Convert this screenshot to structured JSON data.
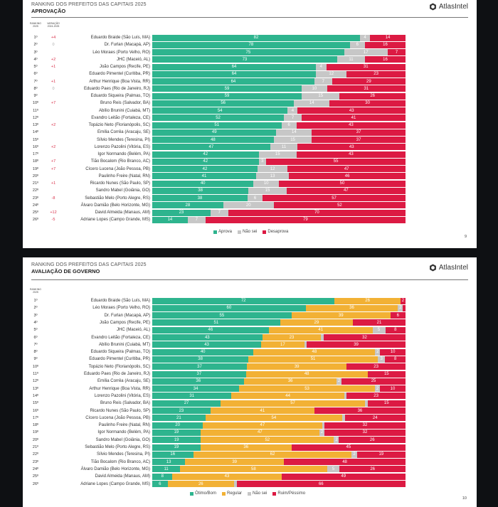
{
  "colors": {
    "green": "#2eb48e",
    "gray": "#c7c7c7",
    "red": "#dc1a43",
    "yellow": "#f2b135"
  },
  "slides": [
    {
      "suptitle": "RANKING DOS PREFEITOS DAS CAPITAIS 2025",
      "title": "APROVAÇÃO",
      "logo": "AtlasIntel",
      "col_rank": "RANKING 2025",
      "col_var": "VARIAÇÃO 2024-2025",
      "page": "9",
      "legend": [
        "Aprova",
        "Não sei",
        "Desaprova"
      ]
    },
    {
      "suptitle": "RANKING DOS PREFEITOS DAS CAPITAIS 2025",
      "title": "AVALIAÇÃO DE GOVERNO",
      "logo": "AtlasIntel",
      "col_rank": "RANKING 2025",
      "page": "10",
      "legend": [
        "Ótimo/Bom",
        "Regular",
        "Não sei",
        "Ruim/Péssimo"
      ]
    }
  ],
  "chart_data": [
    {
      "type": "bar",
      "stacked": true,
      "orientation": "horizontal",
      "title": "APROVAÇÃO",
      "legend_placement": "bottom",
      "series_names": [
        "Aprova",
        "Não sei",
        "Desaprova"
      ],
      "rows": [
        {
          "rank": "1º",
          "var": "+4",
          "name": "Eduardo Braide (São Luís, MA)",
          "values": [
            82,
            4,
            14
          ]
        },
        {
          "rank": "2º",
          "var": "0",
          "name": "Dr. Furlan (Macapá, AP)",
          "values": [
            78,
            6,
            16
          ]
        },
        {
          "rank": "3º",
          "var": "",
          "name": "Léo Moraes (Porto Velho, RO)",
          "values": [
            75,
            17,
            7
          ]
        },
        {
          "rank": "4º",
          "var": "+2",
          "name": "JHC (Maceió, AL)",
          "values": [
            73,
            11,
            16
          ]
        },
        {
          "rank": "5º",
          "var": "+1",
          "name": "João Campos (Recife, PE)",
          "values": [
            64,
            4,
            31
          ]
        },
        {
          "rank": "6º",
          "var": "",
          "name": "Eduardo Pimentel (Curitiba, PR)",
          "values": [
            64,
            12,
            23
          ]
        },
        {
          "rank": "7º",
          "var": "+1",
          "name": "Arthur Henrique (Boa Vista, RR)",
          "values": [
            64,
            7,
            29
          ]
        },
        {
          "rank": "8º",
          "var": "0",
          "name": "Eduardo Paes (Rio de Janeiro, RJ)",
          "values": [
            59,
            10,
            31
          ]
        },
        {
          "rank": "9º",
          "var": "",
          "name": "Eduardo Siqueira (Palmas, TO)",
          "values": [
            59,
            15,
            26
          ]
        },
        {
          "rank": "10º",
          "var": "+7",
          "name": "Bruno Reis (Salvador, BA)",
          "values": [
            56,
            14,
            30
          ]
        },
        {
          "rank": "11º",
          "var": "",
          "name": "Abílio Brunini (Cuiabá, MT)",
          "values": [
            54,
            4,
            43
          ]
        },
        {
          "rank": "12º",
          "var": "",
          "name": "Evandro Leitão (Fortaleza, CE)",
          "values": [
            52,
            7,
            41
          ]
        },
        {
          "rank": "13º",
          "var": "+2",
          "name": "Topázio Neto (Florianópolis, SC)",
          "values": [
            51,
            6,
            43
          ]
        },
        {
          "rank": "14º",
          "var": "",
          "name": "Emília Corrêa (Aracaju, SE)",
          "values": [
            49,
            14,
            37
          ]
        },
        {
          "rank": "15º",
          "var": "",
          "name": "Sílvio Mendes (Teresina, PI)",
          "values": [
            48,
            15,
            37
          ]
        },
        {
          "rank": "16º",
          "var": "+2",
          "name": "Lorenzo Pazolini (Vitória, ES)",
          "values": [
            47,
            11,
            43
          ]
        },
        {
          "rank": "17º",
          "var": "",
          "name": "Igor Normando (Belém, PA)",
          "values": [
            42,
            15,
            43
          ]
        },
        {
          "rank": "18º",
          "var": "+7",
          "name": "Tião Bocalom (Rio Branco, AC)",
          "values": [
            42,
            3,
            55
          ]
        },
        {
          "rank": "19º",
          "var": "+7",
          "name": "Cícero Lucena (João Pessoa, PB)",
          "values": [
            42,
            12,
            47
          ]
        },
        {
          "rank": "20º",
          "var": "",
          "name": "Paulinho Freire (Natal, RN)",
          "values": [
            41,
            13,
            46
          ]
        },
        {
          "rank": "21º",
          "var": "+1",
          "name": "Ricardo Nunes (São Paulo, SP)",
          "values": [
            40,
            10,
            50
          ]
        },
        {
          "rank": "22º",
          "var": "",
          "name": "Sandro Mabel (Goiânia, GO)",
          "values": [
            38,
            15,
            47
          ]
        },
        {
          "rank": "23º",
          "var": "-8",
          "name": "Sebastião Melo (Porto Alegre, RS)",
          "values": [
            38,
            6,
            57
          ]
        },
        {
          "rank": "24º",
          "var": "",
          "name": "Álvaro Damião (Belo Horizonte, MG)",
          "values": [
            28,
            20,
            52
          ]
        },
        {
          "rank": "25º",
          "var": "+12",
          "name": "David Almeida (Manaus, AM)",
          "values": [
            23,
            7,
            70
          ]
        },
        {
          "rank": "26º",
          "var": "-5",
          "name": "Adriane Lopes (Campo Grande, MS)",
          "values": [
            14,
            7,
            79
          ]
        }
      ]
    },
    {
      "type": "bar",
      "stacked": true,
      "orientation": "horizontal",
      "title": "AVALIAÇÃO DE GOVERNO",
      "legend_placement": "bottom",
      "series_names": [
        "Ótimo/Bom",
        "Regular",
        "Não sei",
        "Ruim/Péssimo"
      ],
      "rows": [
        {
          "rank": "1º",
          "name": "Eduardo Braide (São Luís, MA)",
          "values": [
            72,
            26,
            0,
            2
          ]
        },
        {
          "rank": "2º",
          "name": "Léo Moraes (Porto Velho, RO)",
          "values": [
            60,
            36,
            2,
            1
          ]
        },
        {
          "rank": "3º",
          "name": "Dr. Furlan (Macapá, AP)",
          "values": [
            55,
            39,
            0,
            6
          ]
        },
        {
          "rank": "4º",
          "name": "João Campos (Recife, PE)",
          "values": [
            51,
            29,
            0,
            21
          ]
        },
        {
          "rank": "5º",
          "name": "JHC (Maceió, AL)",
          "values": [
            46,
            41,
            5,
            8
          ]
        },
        {
          "rank": "6º",
          "name": "Evandro Leitão (Fortaleza, CE)",
          "values": [
            43,
            23,
            1,
            32
          ]
        },
        {
          "rank": "7º",
          "name": "Abílio Brunini (Cuiabá, MT)",
          "values": [
            43,
            17,
            1,
            39
          ]
        },
        {
          "rank": "8º",
          "name": "Eduardo Siqueira (Palmas, TO)",
          "values": [
            40,
            48,
            2,
            10
          ]
        },
        {
          "rank": "9º",
          "name": "Eduardo Pimentel (Curitiba, PR)",
          "values": [
            38,
            51,
            3,
            8
          ]
        },
        {
          "rank": "10º",
          "name": "Topázio Neto (Florianópolis, SC)",
          "values": [
            37,
            39,
            0,
            23
          ]
        },
        {
          "rank": "11º",
          "name": "Eduardo Paes (Rio de Janeiro, RJ)",
          "values": [
            37,
            48,
            0,
            15
          ]
        },
        {
          "rank": "12º",
          "name": "Emília Corrêa (Aracaju, SE)",
          "values": [
            36,
            36,
            2,
            25
          ]
        },
        {
          "rank": "13º",
          "name": "Arthur Henrique (Boa Vista, RR)",
          "values": [
            34,
            53,
            2,
            10
          ]
        },
        {
          "rank": "14º",
          "name": "Lorenzo Pazolini (Vitória, ES)",
          "values": [
            31,
            44,
            1,
            23
          ]
        },
        {
          "rank": "15º",
          "name": "Bruno Reis (Salvador, BA)",
          "values": [
            27,
            57,
            1,
            15
          ]
        },
        {
          "rank": "16º",
          "name": "Ricardo Nunes (São Paulo, SP)",
          "values": [
            23,
            41,
            0,
            36
          ]
        },
        {
          "rank": "17º",
          "name": "Cícero Lucena (João Pessoa, PB)",
          "values": [
            21,
            54,
            1,
            24
          ]
        },
        {
          "rank": "18º",
          "name": "Paulinho Freire (Natal, RN)",
          "values": [
            20,
            47,
            1,
            32
          ]
        },
        {
          "rank": "19º",
          "name": "Igor Normando (Belém, PA)",
          "values": [
            19,
            47,
            2,
            32
          ]
        },
        {
          "rank": "20º",
          "name": "Sandro Mabel (Goiânia, GO)",
          "values": [
            19,
            52,
            2,
            26
          ]
        },
        {
          "rank": "21º",
          "name": "Sebastião Melo (Porto Alegre, RS)",
          "values": [
            19,
            36,
            0,
            45
          ]
        },
        {
          "rank": "22º",
          "name": "Sílvio Mendes (Teresina, PI)",
          "values": [
            16,
            62,
            2,
            19
          ]
        },
        {
          "rank": "23º",
          "name": "Tião Bocalom (Rio Branco, AC)",
          "values": [
            13,
            39,
            0,
            48
          ]
        },
        {
          "rank": "24º",
          "name": "Álvaro Damião (Belo Horizonte, MG)",
          "values": [
            11,
            58,
            5,
            26
          ]
        },
        {
          "rank": "25º",
          "name": "David Almeida (Manaus, AM)",
          "values": [
            8,
            43,
            0,
            49
          ]
        },
        {
          "rank": "26º",
          "name": "Adriane Lopes (Campo Grande, MS)",
          "values": [
            6,
            26,
            1,
            66
          ]
        }
      ]
    }
  ]
}
